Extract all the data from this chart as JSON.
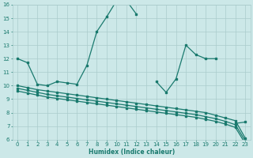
{
  "xlabel": "Humidex (Indice chaleur)",
  "xlim": [
    -0.5,
    23.5
  ],
  "ylim": [
    6,
    16
  ],
  "yticks": [
    6,
    7,
    8,
    9,
    10,
    11,
    12,
    13,
    14,
    15,
    16
  ],
  "xticks": [
    0,
    1,
    2,
    3,
    4,
    5,
    6,
    7,
    8,
    9,
    10,
    11,
    12,
    13,
    14,
    15,
    16,
    17,
    18,
    19,
    20,
    21,
    22,
    23
  ],
  "bg_color": "#cce8e8",
  "line_color": "#1a7a6e",
  "grid_color": "#aacccc",
  "series": [
    {
      "x": [
        0,
        1,
        2,
        3,
        4,
        5,
        6,
        7,
        8,
        9,
        10,
        11,
        12,
        13,
        14,
        15,
        16,
        17,
        18,
        19,
        20,
        21,
        22,
        23
      ],
      "y": [
        12,
        11.7,
        10.1,
        10.0,
        10.3,
        10.2,
        10.1,
        11.5,
        14.0,
        15.1,
        16.3,
        16.3,
        15.3,
        null,
        10.3,
        9.5,
        10.5,
        13.0,
        12.3,
        12.0,
        12.0,
        null,
        7.2,
        7.3
      ]
    },
    {
      "x": [
        0,
        1,
        2,
        3,
        4,
        5,
        6,
        7,
        8,
        9,
        10,
        11,
        12,
        13,
        14,
        15,
        16,
        17,
        18,
        19,
        20,
        21,
        22,
        23
      ],
      "y": [
        10.0,
        9.85,
        9.7,
        9.6,
        9.5,
        9.4,
        9.3,
        9.2,
        9.1,
        9.0,
        8.9,
        8.8,
        8.7,
        8.6,
        8.5,
        8.4,
        8.3,
        8.2,
        8.1,
        8.0,
        7.8,
        7.6,
        7.4,
        6.1
      ]
    },
    {
      "x": [
        0,
        1,
        2,
        3,
        4,
        5,
        6,
        7,
        8,
        9,
        10,
        11,
        12,
        13,
        14,
        15,
        16,
        17,
        18,
        19,
        20,
        21,
        22,
        23
      ],
      "y": [
        9.8,
        9.65,
        9.5,
        9.35,
        9.25,
        9.15,
        9.05,
        8.95,
        8.85,
        8.75,
        8.65,
        8.55,
        8.45,
        8.35,
        8.25,
        8.15,
        8.05,
        7.95,
        7.85,
        7.7,
        7.55,
        7.35,
        7.1,
        5.9
      ]
    },
    {
      "x": [
        0,
        1,
        2,
        3,
        4,
        5,
        6,
        7,
        8,
        9,
        10,
        11,
        12,
        13,
        14,
        15,
        16,
        17,
        18,
        19,
        20,
        21,
        22,
        23
      ],
      "y": [
        9.6,
        9.45,
        9.3,
        9.15,
        9.05,
        8.95,
        8.85,
        8.75,
        8.65,
        8.55,
        8.45,
        8.35,
        8.25,
        8.15,
        8.05,
        7.95,
        7.85,
        7.75,
        7.65,
        7.5,
        7.35,
        7.15,
        6.9,
        5.7
      ]
    }
  ]
}
